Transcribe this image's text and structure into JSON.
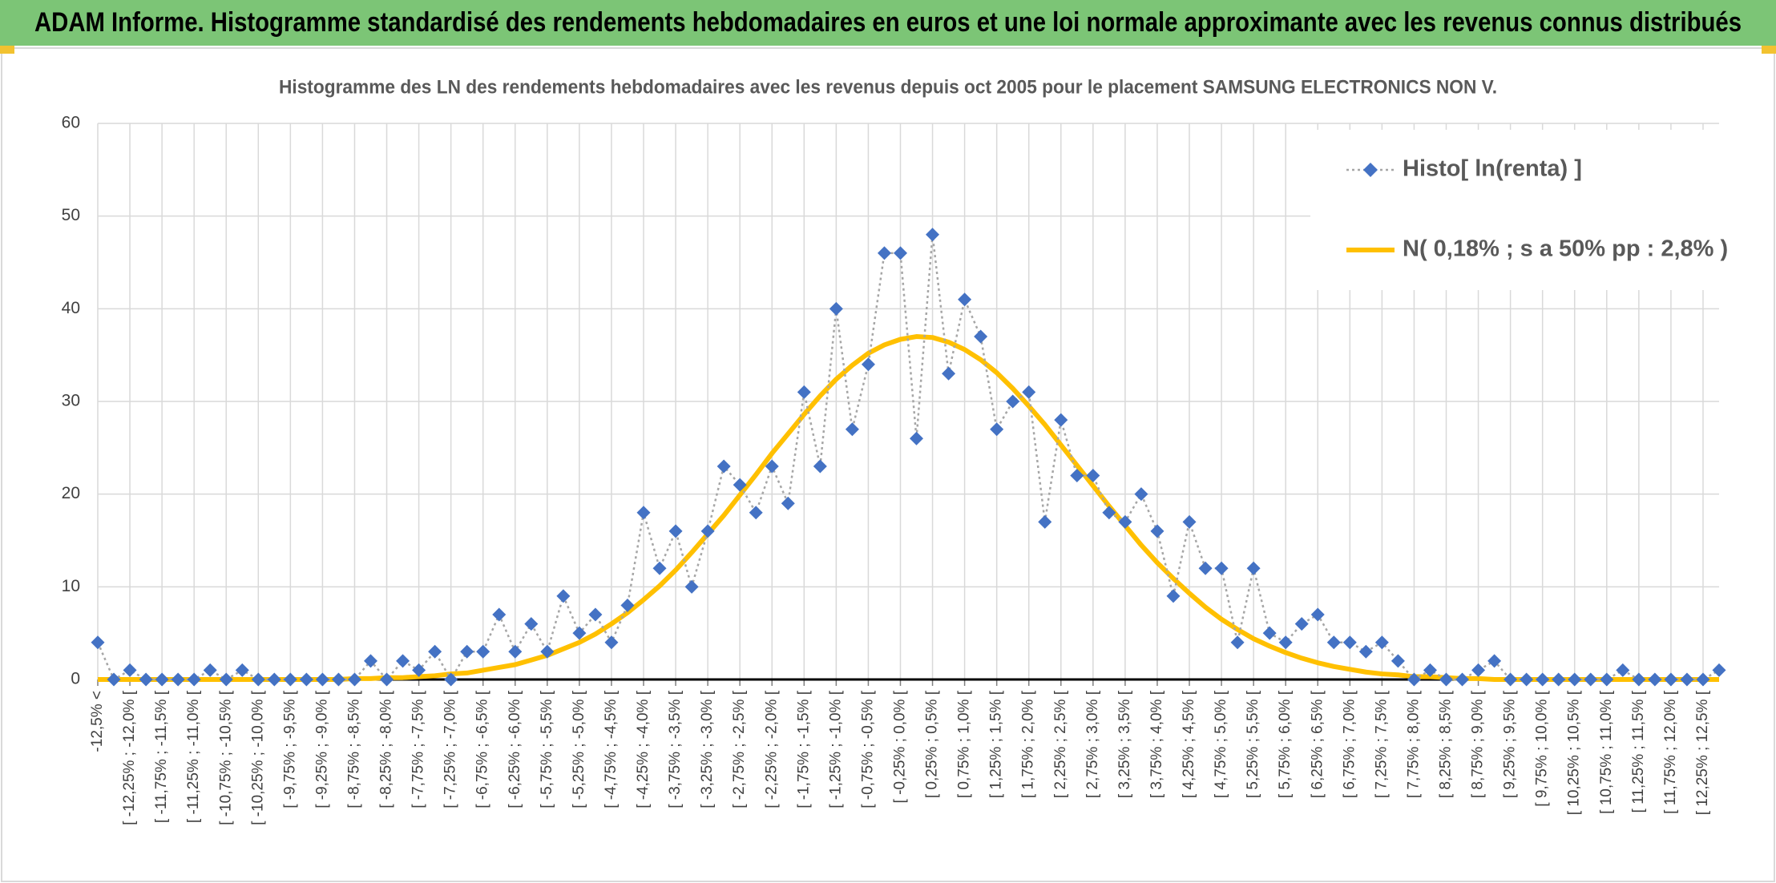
{
  "header": {
    "title": "ADAM Informe. Histogramme standardisé des rendements hebdomadaires en euros et une loi normale approximante avec les revenus connus distribués"
  },
  "chart_data": {
    "type": "line",
    "title": "Histogramme des LN des rendements hebdomadaires avec les revenus depuis oct 2005 pour le placement SAMSUNG ELECTRONICS NON V.",
    "categories": [
      "-12,5% <",
      null,
      "[ -12,25% ; -12,0% [",
      null,
      "[ -11,75% ; -11,5% [",
      null,
      "[ -11,25% ; -11,0% [",
      null,
      "[ -10,75% ; -10,5% [",
      null,
      "[ -10,25% ; -10,0% [",
      null,
      "[ -9,75% ; -9,5% [",
      null,
      "[ -9,25% ; -9,0% [",
      null,
      "[ -8,75% ; -8,5% [",
      null,
      "[ -8,25% ; -8,0% [",
      null,
      "[ -7,75% ; -7,5% [",
      null,
      "[ -7,25% ; -7,0% [",
      null,
      "[ -6,75% ; -6,5% [",
      null,
      "[ -6,25% ; -6,0% [",
      null,
      "[ -5,75% ; -5,5% [",
      null,
      "[ -5,25% ; -5,0% [",
      null,
      "[ -4,75% ; -4,5% [",
      null,
      "[ -4,25% ; -4,0% [",
      null,
      "[ -3,75% ; -3,5% [",
      null,
      "[ -3,25% ; -3,0% [",
      null,
      "[ -2,75% ; -2,5% [",
      null,
      "[ -2,25% ; -2,0% [",
      null,
      "[ -1,75% ; -1,5% [",
      null,
      "[ -1,25% ; -1,0% [",
      null,
      "[ -0,75% ; -0,5% [",
      null,
      "[ -0,25% ; 0,0% [",
      null,
      "[ 0,25% ; 0,5% [",
      null,
      "[ 0,75% ; 1,0% [",
      null,
      "[ 1,25% ; 1,5% [",
      null,
      "[ 1,75% ; 2,0% [",
      null,
      "[ 2,25% ; 2,5% [",
      null,
      "[ 2,75% ; 3,0% [",
      null,
      "[ 3,25% ; 3,5% [",
      null,
      "[ 3,75% ; 4,0% [",
      null,
      "[ 4,25% ; 4,5% [",
      null,
      "[ 4,75% ; 5,0% [",
      null,
      "[ 5,25% ; 5,5% [",
      null,
      "[ 5,75% ; 6,0% [",
      null,
      "[ 6,25% ; 6,5% [",
      null,
      "[ 6,75% ; 7,0% [",
      null,
      "[ 7,25% ; 7,5% [",
      null,
      "[ 7,75% ; 8,0% [",
      null,
      "[ 8,25% ; 8,5% [",
      null,
      "[ 8,75% ; 9,0% [",
      null,
      "[ 9,25% ; 9,5% [",
      null,
      "[ 9,75% ; 10,0% [",
      null,
      "[ 10,25% ; 10,5% [",
      null,
      "[ 10,75% ; 11,0% [",
      null,
      "[ 11,25% ; 11,5% [",
      null,
      "[ 11,75% ; 12,0% [",
      null,
      "[ 12,25% ; 12,5% [",
      null
    ],
    "series": [
      {
        "name": "Histo[ ln(renta) ]",
        "color": "#4472c4",
        "line_color": "#a6a6a6",
        "marker": "diamond",
        "values": [
          4,
          0,
          1,
          0,
          0,
          0,
          0,
          1,
          0,
          1,
          0,
          0,
          0,
          0,
          0,
          0,
          0,
          2,
          0,
          2,
          1,
          3,
          0,
          3,
          3,
          7,
          3,
          6,
          3,
          9,
          5,
          7,
          4,
          8,
          18,
          12,
          16,
          10,
          16,
          23,
          21,
          18,
          23,
          19,
          31,
          23,
          40,
          27,
          34,
          46,
          46,
          26,
          48,
          33,
          41,
          37,
          27,
          30,
          31,
          17,
          28,
          22,
          22,
          18,
          17,
          20,
          16,
          9,
          17,
          12,
          12,
          4,
          12,
          5,
          4,
          6,
          7,
          4,
          4,
          3,
          4,
          2,
          0,
          1,
          0,
          0,
          1,
          2,
          0,
          0,
          0,
          0,
          0,
          0,
          0,
          1,
          0,
          0,
          0,
          0,
          0,
          1
        ]
      },
      {
        "name": "N( 0,18% ; s a 50% pp : 2,8% )",
        "color": "#ffc000",
        "values": [
          0,
          0,
          0,
          0,
          0,
          0,
          0,
          0,
          0,
          0,
          0,
          0,
          0,
          0,
          0,
          0,
          0.1,
          0.1,
          0.2,
          0.2,
          0.3,
          0.4,
          0.6,
          0.7,
          1.0,
          1.3,
          1.6,
          2.1,
          2.6,
          3.3,
          4.0,
          4.9,
          6.0,
          7.2,
          8.6,
          10.1,
          11.8,
          13.7,
          15.7,
          17.7,
          19.9,
          22.1,
          24.4,
          26.5,
          28.6,
          30.6,
          32.4,
          33.9,
          35.2,
          36.1,
          36.7,
          37.0,
          36.9,
          36.4,
          35.6,
          34.5,
          33.1,
          31.4,
          29.5,
          27.5,
          25.3,
          23.1,
          20.9,
          18.7,
          16.6,
          14.5,
          12.6,
          10.9,
          9.3,
          7.8,
          6.5,
          5.4,
          4.4,
          3.6,
          2.9,
          2.3,
          1.8,
          1.4,
          1.1,
          0.8,
          0.6,
          0.5,
          0.3,
          0.3,
          0.2,
          0.1,
          0.1,
          0,
          0,
          0,
          0,
          0,
          0,
          0,
          0,
          0,
          0,
          0,
          0,
          0,
          0,
          0
        ]
      }
    ],
    "ylim": [
      0,
      60
    ],
    "yticks": [
      0,
      10,
      20,
      30,
      40,
      50,
      60
    ],
    "grid": true,
    "legend": "upper right"
  }
}
